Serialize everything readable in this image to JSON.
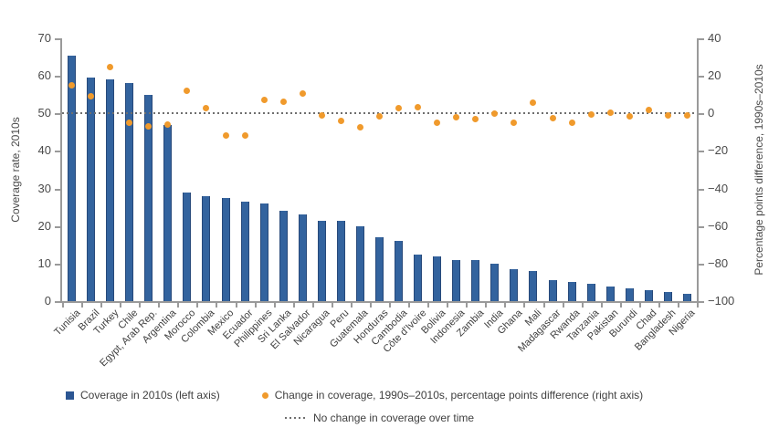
{
  "chart_data": {
    "type": "bar+scatter",
    "title": "",
    "left_axis": {
      "label": "Coverage rate, 2010s",
      "min": 0,
      "max": 70,
      "ticks": [
        70,
        60,
        50,
        40,
        30,
        20,
        10,
        0
      ]
    },
    "right_axis": {
      "label": "Percentage points difference, 1990s–2010s",
      "min": -100,
      "max": 40,
      "ticks": [
        40,
        20,
        0,
        -20,
        -40,
        -60,
        -80,
        -100
      ]
    },
    "reference_line": {
      "right_value": 0,
      "left_value": 50
    },
    "categories": [
      "Tunisia",
      "Brazil",
      "Turkey",
      "Chile",
      "Egypt, Arab Rep.",
      "Argentina",
      "Morocco",
      "Colombia",
      "Mexico",
      "Ecuador",
      "Philippines",
      "Sri Lanka",
      "El Salvador",
      "Nicaragua",
      "Peru",
      "Guatemala",
      "Honduras",
      "Cambodia",
      "Côte d'Ivoire",
      "Bolivia",
      "Indonesia",
      "Zambia",
      "India",
      "Ghana",
      "Mali",
      "Madagascar",
      "Rwanda",
      "Tanzania",
      "Pakistan",
      "Burundi",
      "Chad",
      "Bangladesh",
      "Nigeria"
    ],
    "series": [
      {
        "name": "Coverage in 2010s (left axis)",
        "type": "bar",
        "axis": "left",
        "values": [
          65.5,
          59.5,
          59,
          58,
          55,
          47,
          29,
          28,
          27.5,
          26.5,
          26,
          24,
          23,
          21.5,
          21.5,
          20,
          17,
          16,
          12.5,
          12,
          11,
          11,
          10,
          8.5,
          8,
          5.5,
          5,
          4.5,
          4,
          3.5,
          3,
          2.5,
          2
        ]
      },
      {
        "name": "Change in coverage, 1990s–2010s, percentage points difference (right axis)",
        "type": "scatter",
        "axis": "right",
        "values": [
          15,
          9,
          24.5,
          -5,
          -7,
          -6,
          12,
          3,
          -12,
          -12,
          7,
          6,
          10.5,
          -1,
          -4,
          -7.5,
          -1.5,
          3,
          3.5,
          -5,
          -2,
          -3,
          0,
          -5,
          5.5,
          -2.5,
          -5,
          -0.5,
          0.5,
          -1.5,
          2,
          -1,
          -1
        ]
      }
    ],
    "legend": {
      "bar_label": "Coverage in 2010s (left axis)",
      "dot_label": "Change in coverage, 1990s–2010s, percentage points difference (right axis)",
      "line_label": "No change in coverage over time",
      "position": "bottom"
    },
    "colors": {
      "bar": "#33639e",
      "bar_edge": "#27497a",
      "dot": "#f09a2c",
      "reference_line": "#6e6e6e",
      "axis": "#9a9a9a",
      "text": "#4a4a4a"
    },
    "grid": "off"
  }
}
